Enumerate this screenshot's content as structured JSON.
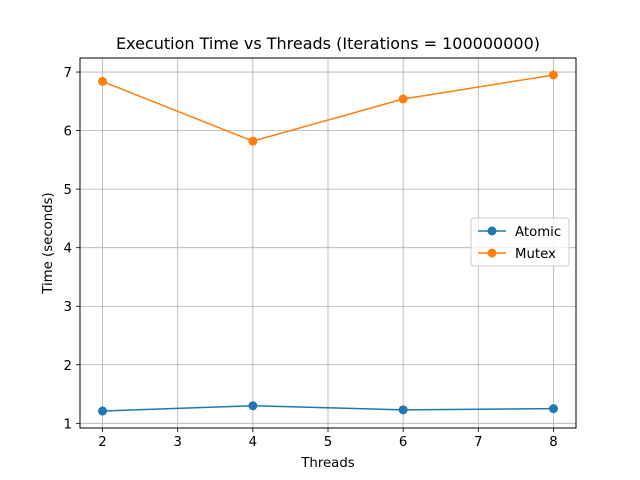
{
  "chart_data": {
    "type": "line",
    "title": "Execution Time vs Threads (Iterations = 100000000)",
    "xlabel": "Threads",
    "ylabel": "Time (seconds)",
    "x": [
      2,
      4,
      6,
      8
    ],
    "xticks": [
      2,
      3,
      4,
      5,
      6,
      7,
      8
    ],
    "yticks": [
      1,
      2,
      3,
      4,
      5,
      6,
      7
    ],
    "xlim": [
      1.7,
      8.3
    ],
    "ylim": [
      0.92,
      7.24
    ],
    "grid": true,
    "legend_position": "center-right",
    "marker": "circle",
    "series": [
      {
        "name": "Atomic",
        "color": "#1f77b4",
        "values": [
          1.21,
          1.3,
          1.23,
          1.25
        ]
      },
      {
        "name": "Mutex",
        "color": "#ff7f0e",
        "values": [
          6.84,
          5.82,
          6.54,
          6.95
        ]
      }
    ]
  }
}
